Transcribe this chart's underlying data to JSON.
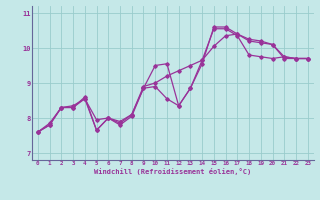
{
  "xlabel": "Windchill (Refroidissement éolien,°C)",
  "bg_color": "#c5e8e8",
  "line_color": "#993399",
  "grid_color": "#99cccc",
  "x_values": [
    0,
    1,
    2,
    3,
    4,
    5,
    6,
    7,
    8,
    9,
    10,
    11,
    12,
    13,
    14,
    15,
    16,
    17,
    18,
    19,
    20,
    21,
    22,
    23
  ],
  "series1": [
    7.6,
    7.8,
    8.3,
    8.3,
    8.6,
    7.65,
    8.0,
    7.8,
    8.05,
    8.85,
    9.5,
    9.55,
    8.35,
    8.85,
    9.65,
    10.55,
    10.55,
    10.35,
    9.8,
    9.75,
    9.7,
    9.75,
    9.7,
    9.7
  ],
  "series2": [
    7.6,
    7.8,
    8.3,
    8.3,
    8.55,
    7.65,
    8.0,
    7.85,
    8.1,
    8.85,
    8.9,
    8.55,
    8.35,
    8.85,
    9.55,
    10.6,
    10.6,
    10.4,
    10.25,
    10.2,
    10.1,
    9.7,
    9.7,
    9.7
  ],
  "series3": [
    7.6,
    7.85,
    8.3,
    8.35,
    8.55,
    7.95,
    8.0,
    7.9,
    8.1,
    8.9,
    9.0,
    9.2,
    9.35,
    9.5,
    9.65,
    10.05,
    10.35,
    10.4,
    10.2,
    10.15,
    10.1,
    9.75,
    9.7,
    9.7
  ],
  "ylim": [
    6.8,
    11.2
  ],
  "xlim": [
    -0.5,
    23.5
  ],
  "yticks": [
    7,
    8,
    9,
    10,
    11
  ],
  "xticks": [
    0,
    1,
    2,
    3,
    4,
    5,
    6,
    7,
    8,
    9,
    10,
    11,
    12,
    13,
    14,
    15,
    16,
    17,
    18,
    19,
    20,
    21,
    22,
    23
  ]
}
